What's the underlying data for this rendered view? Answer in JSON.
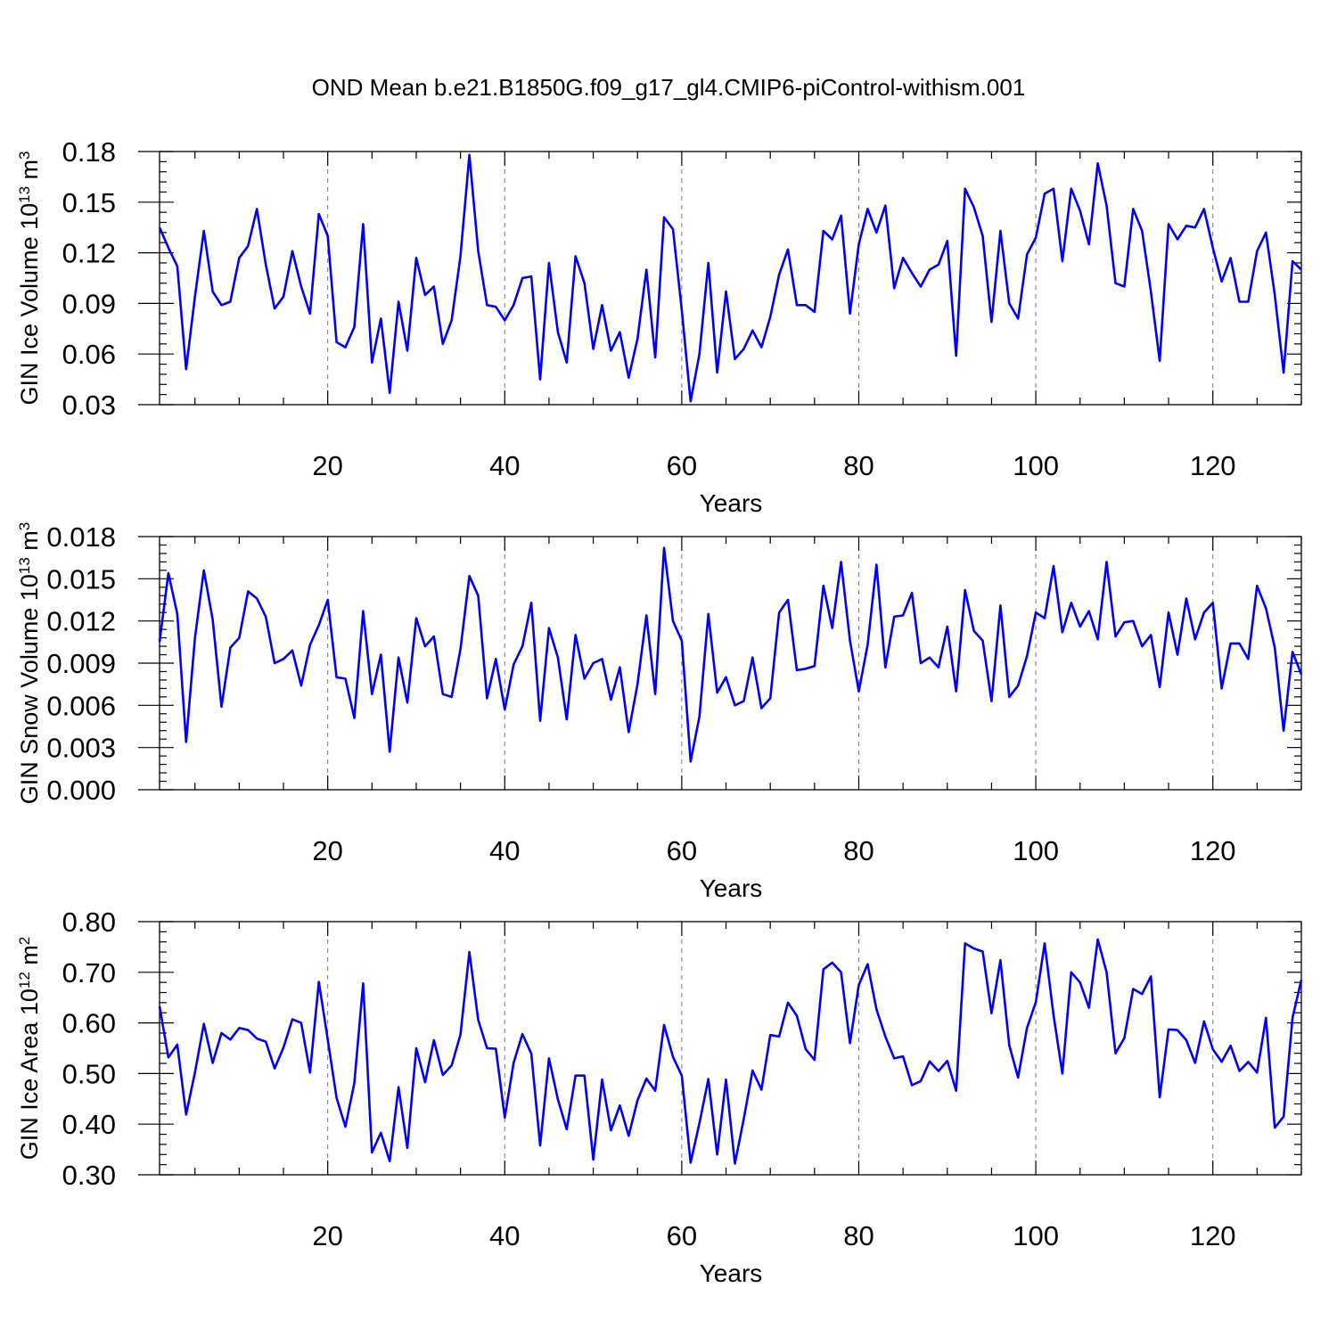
{
  "figure_title": "OND Mean b.e21.B1850G.f09_g17_gl4.CMIP6-piControl-withism.001",
  "chart_data": [
    {
      "type": "line",
      "xlabel": "Years",
      "ylabel_main": "GIN Ice Volume 10",
      "ylabel_exp": "13",
      "ylabel_unit": " m",
      "ylabel_unit_exp": "3",
      "xlim": [
        1,
        130
      ],
      "ylim": [
        0.03,
        0.18
      ],
      "xticks": [
        20,
        40,
        60,
        80,
        100,
        120
      ],
      "yticks": [
        0.03,
        0.06,
        0.09,
        0.12,
        0.15,
        0.18
      ],
      "ytick_labels": [
        "0.03",
        "0.06",
        "0.09",
        "0.12",
        "0.15",
        "0.18"
      ],
      "grid": "vertical dashed at major x ticks",
      "series": [
        {
          "color": "#0000ff",
          "x_start": 1,
          "values": [
            0.135,
            0.123,
            0.112,
            0.051,
            0.094,
            0.133,
            0.097,
            0.089,
            0.091,
            0.117,
            0.124,
            0.146,
            0.113,
            0.087,
            0.094,
            0.121,
            0.1,
            0.084,
            0.143,
            0.13,
            0.067,
            0.064,
            0.076,
            0.137,
            0.055,
            0.081,
            0.037,
            0.091,
            0.062,
            0.117,
            0.095,
            0.1,
            0.066,
            0.08,
            0.118,
            0.178,
            0.121,
            0.089,
            0.088,
            0.08,
            0.089,
            0.105,
            0.106,
            0.045,
            0.114,
            0.073,
            0.055,
            0.118,
            0.102,
            0.063,
            0.089,
            0.062,
            0.073,
            0.046,
            0.069,
            0.11,
            0.058,
            0.141,
            0.134,
            0.086,
            0.032,
            0.06,
            0.114,
            0.049,
            0.097,
            0.057,
            0.063,
            0.074,
            0.064,
            0.082,
            0.107,
            0.122,
            0.089,
            0.089,
            0.085,
            0.133,
            0.128,
            0.142,
            0.084,
            0.125,
            0.146,
            0.132,
            0.148,
            0.099,
            0.117,
            0.108,
            0.1,
            0.11,
            0.113,
            0.127,
            0.059,
            0.158,
            0.147,
            0.13,
            0.079,
            0.133,
            0.09,
            0.081,
            0.119,
            0.129,
            0.155,
            0.158,
            0.115,
            0.158,
            0.145,
            0.125,
            0.173,
            0.148,
            0.102,
            0.1,
            0.146,
            0.133,
            0.097,
            0.056,
            0.137,
            0.128,
            0.136,
            0.135,
            0.146,
            0.123,
            0.103,
            0.117,
            0.091,
            0.091,
            0.121,
            0.132,
            0.095,
            0.049,
            0.115,
            0.11
          ]
        }
      ]
    },
    {
      "type": "line",
      "xlabel": "Years",
      "ylabel_main": "GIN Snow Volume 10",
      "ylabel_exp": "13",
      "ylabel_unit": " m",
      "ylabel_unit_exp": "3",
      "xlim": [
        1,
        130
      ],
      "ylim": [
        0.0,
        0.018
      ],
      "xticks": [
        20,
        40,
        60,
        80,
        100,
        120
      ],
      "yticks": [
        0.0,
        0.003,
        0.006,
        0.009,
        0.012,
        0.015,
        0.018
      ],
      "ytick_labels": [
        "0.000",
        "0.003",
        "0.006",
        "0.009",
        "0.012",
        "0.015",
        "0.018"
      ],
      "grid": "vertical dashed at major x ticks",
      "series": [
        {
          "color": "#0000ff",
          "x_start": 1,
          "values": [
            0.0105,
            0.0154,
            0.0125,
            0.0034,
            0.0108,
            0.0156,
            0.0121,
            0.0059,
            0.0101,
            0.0108,
            0.0141,
            0.0136,
            0.0123,
            0.009,
            0.0093,
            0.0099,
            0.0074,
            0.0103,
            0.0117,
            0.0135,
            0.008,
            0.0079,
            0.0051,
            0.0127,
            0.0068,
            0.0096,
            0.0027,
            0.0094,
            0.0062,
            0.0122,
            0.0102,
            0.0109,
            0.0068,
            0.0066,
            0.01,
            0.0152,
            0.0138,
            0.0065,
            0.0093,
            0.0057,
            0.0089,
            0.0102,
            0.0133,
            0.0049,
            0.0115,
            0.0094,
            0.005,
            0.011,
            0.0079,
            0.009,
            0.0093,
            0.0064,
            0.0087,
            0.0041,
            0.0075,
            0.0124,
            0.0068,
            0.0172,
            0.012,
            0.0106,
            0.002,
            0.0052,
            0.0125,
            0.0069,
            0.008,
            0.006,
            0.0063,
            0.0094,
            0.0058,
            0.0065,
            0.0126,
            0.0135,
            0.0085,
            0.0086,
            0.0088,
            0.0145,
            0.0115,
            0.0162,
            0.0106,
            0.007,
            0.0103,
            0.016,
            0.0087,
            0.0123,
            0.0124,
            0.014,
            0.009,
            0.0094,
            0.0087,
            0.0116,
            0.007,
            0.0142,
            0.0113,
            0.0106,
            0.0063,
            0.0131,
            0.0066,
            0.0074,
            0.0095,
            0.0126,
            0.0122,
            0.0159,
            0.0112,
            0.0133,
            0.0116,
            0.0127,
            0.0107,
            0.0162,
            0.0109,
            0.0119,
            0.012,
            0.0102,
            0.011,
            0.0073,
            0.0126,
            0.0096,
            0.0136,
            0.0107,
            0.0126,
            0.0133,
            0.0072,
            0.0104,
            0.0104,
            0.0093,
            0.0145,
            0.0129,
            0.0101,
            0.0042,
            0.0098,
            0.0082
          ]
        }
      ]
    },
    {
      "type": "line",
      "xlabel": "Years",
      "ylabel_main": "GIN Ice Area 10",
      "ylabel_exp": "12",
      "ylabel_unit": " m",
      "ylabel_unit_exp": "2",
      "xlim": [
        1,
        130
      ],
      "ylim": [
        0.3,
        0.8
      ],
      "xticks": [
        20,
        40,
        60,
        80,
        100,
        120
      ],
      "yticks": [
        0.3,
        0.4,
        0.5,
        0.6,
        0.7,
        0.8
      ],
      "ytick_labels": [
        "0.30",
        "0.40",
        "0.50",
        "0.60",
        "0.70",
        "0.80"
      ],
      "grid": "vertical dashed at major x ticks",
      "series": [
        {
          "color": "#0000ff",
          "x_start": 1,
          "values": [
            0.633,
            0.532,
            0.557,
            0.419,
            0.502,
            0.598,
            0.521,
            0.58,
            0.567,
            0.59,
            0.586,
            0.569,
            0.563,
            0.51,
            0.551,
            0.607,
            0.6,
            0.502,
            0.681,
            0.567,
            0.452,
            0.395,
            0.481,
            0.678,
            0.344,
            0.383,
            0.327,
            0.473,
            0.353,
            0.55,
            0.483,
            0.566,
            0.497,
            0.516,
            0.577,
            0.74,
            0.606,
            0.55,
            0.549,
            0.413,
            0.521,
            0.578,
            0.539,
            0.358,
            0.53,
            0.449,
            0.39,
            0.496,
            0.496,
            0.33,
            0.488,
            0.388,
            0.437,
            0.377,
            0.447,
            0.49,
            0.466,
            0.596,
            0.533,
            0.496,
            0.324,
            0.402,
            0.489,
            0.34,
            0.488,
            0.322,
            0.41,
            0.506,
            0.468,
            0.576,
            0.573,
            0.64,
            0.614,
            0.548,
            0.527,
            0.706,
            0.719,
            0.7,
            0.56,
            0.675,
            0.716,
            0.627,
            0.573,
            0.53,
            0.534,
            0.477,
            0.485,
            0.524,
            0.505,
            0.525,
            0.466,
            0.757,
            0.747,
            0.741,
            0.619,
            0.724,
            0.556,
            0.492,
            0.59,
            0.641,
            0.757,
            0.615,
            0.5,
            0.7,
            0.68,
            0.63,
            0.765,
            0.7,
            0.54,
            0.57,
            0.667,
            0.657,
            0.692,
            0.453,
            0.587,
            0.586,
            0.566,
            0.521,
            0.603,
            0.548,
            0.523,
            0.555,
            0.505,
            0.523,
            0.502,
            0.61,
            0.393,
            0.415,
            0.61,
            0.685
          ]
        }
      ]
    }
  ]
}
